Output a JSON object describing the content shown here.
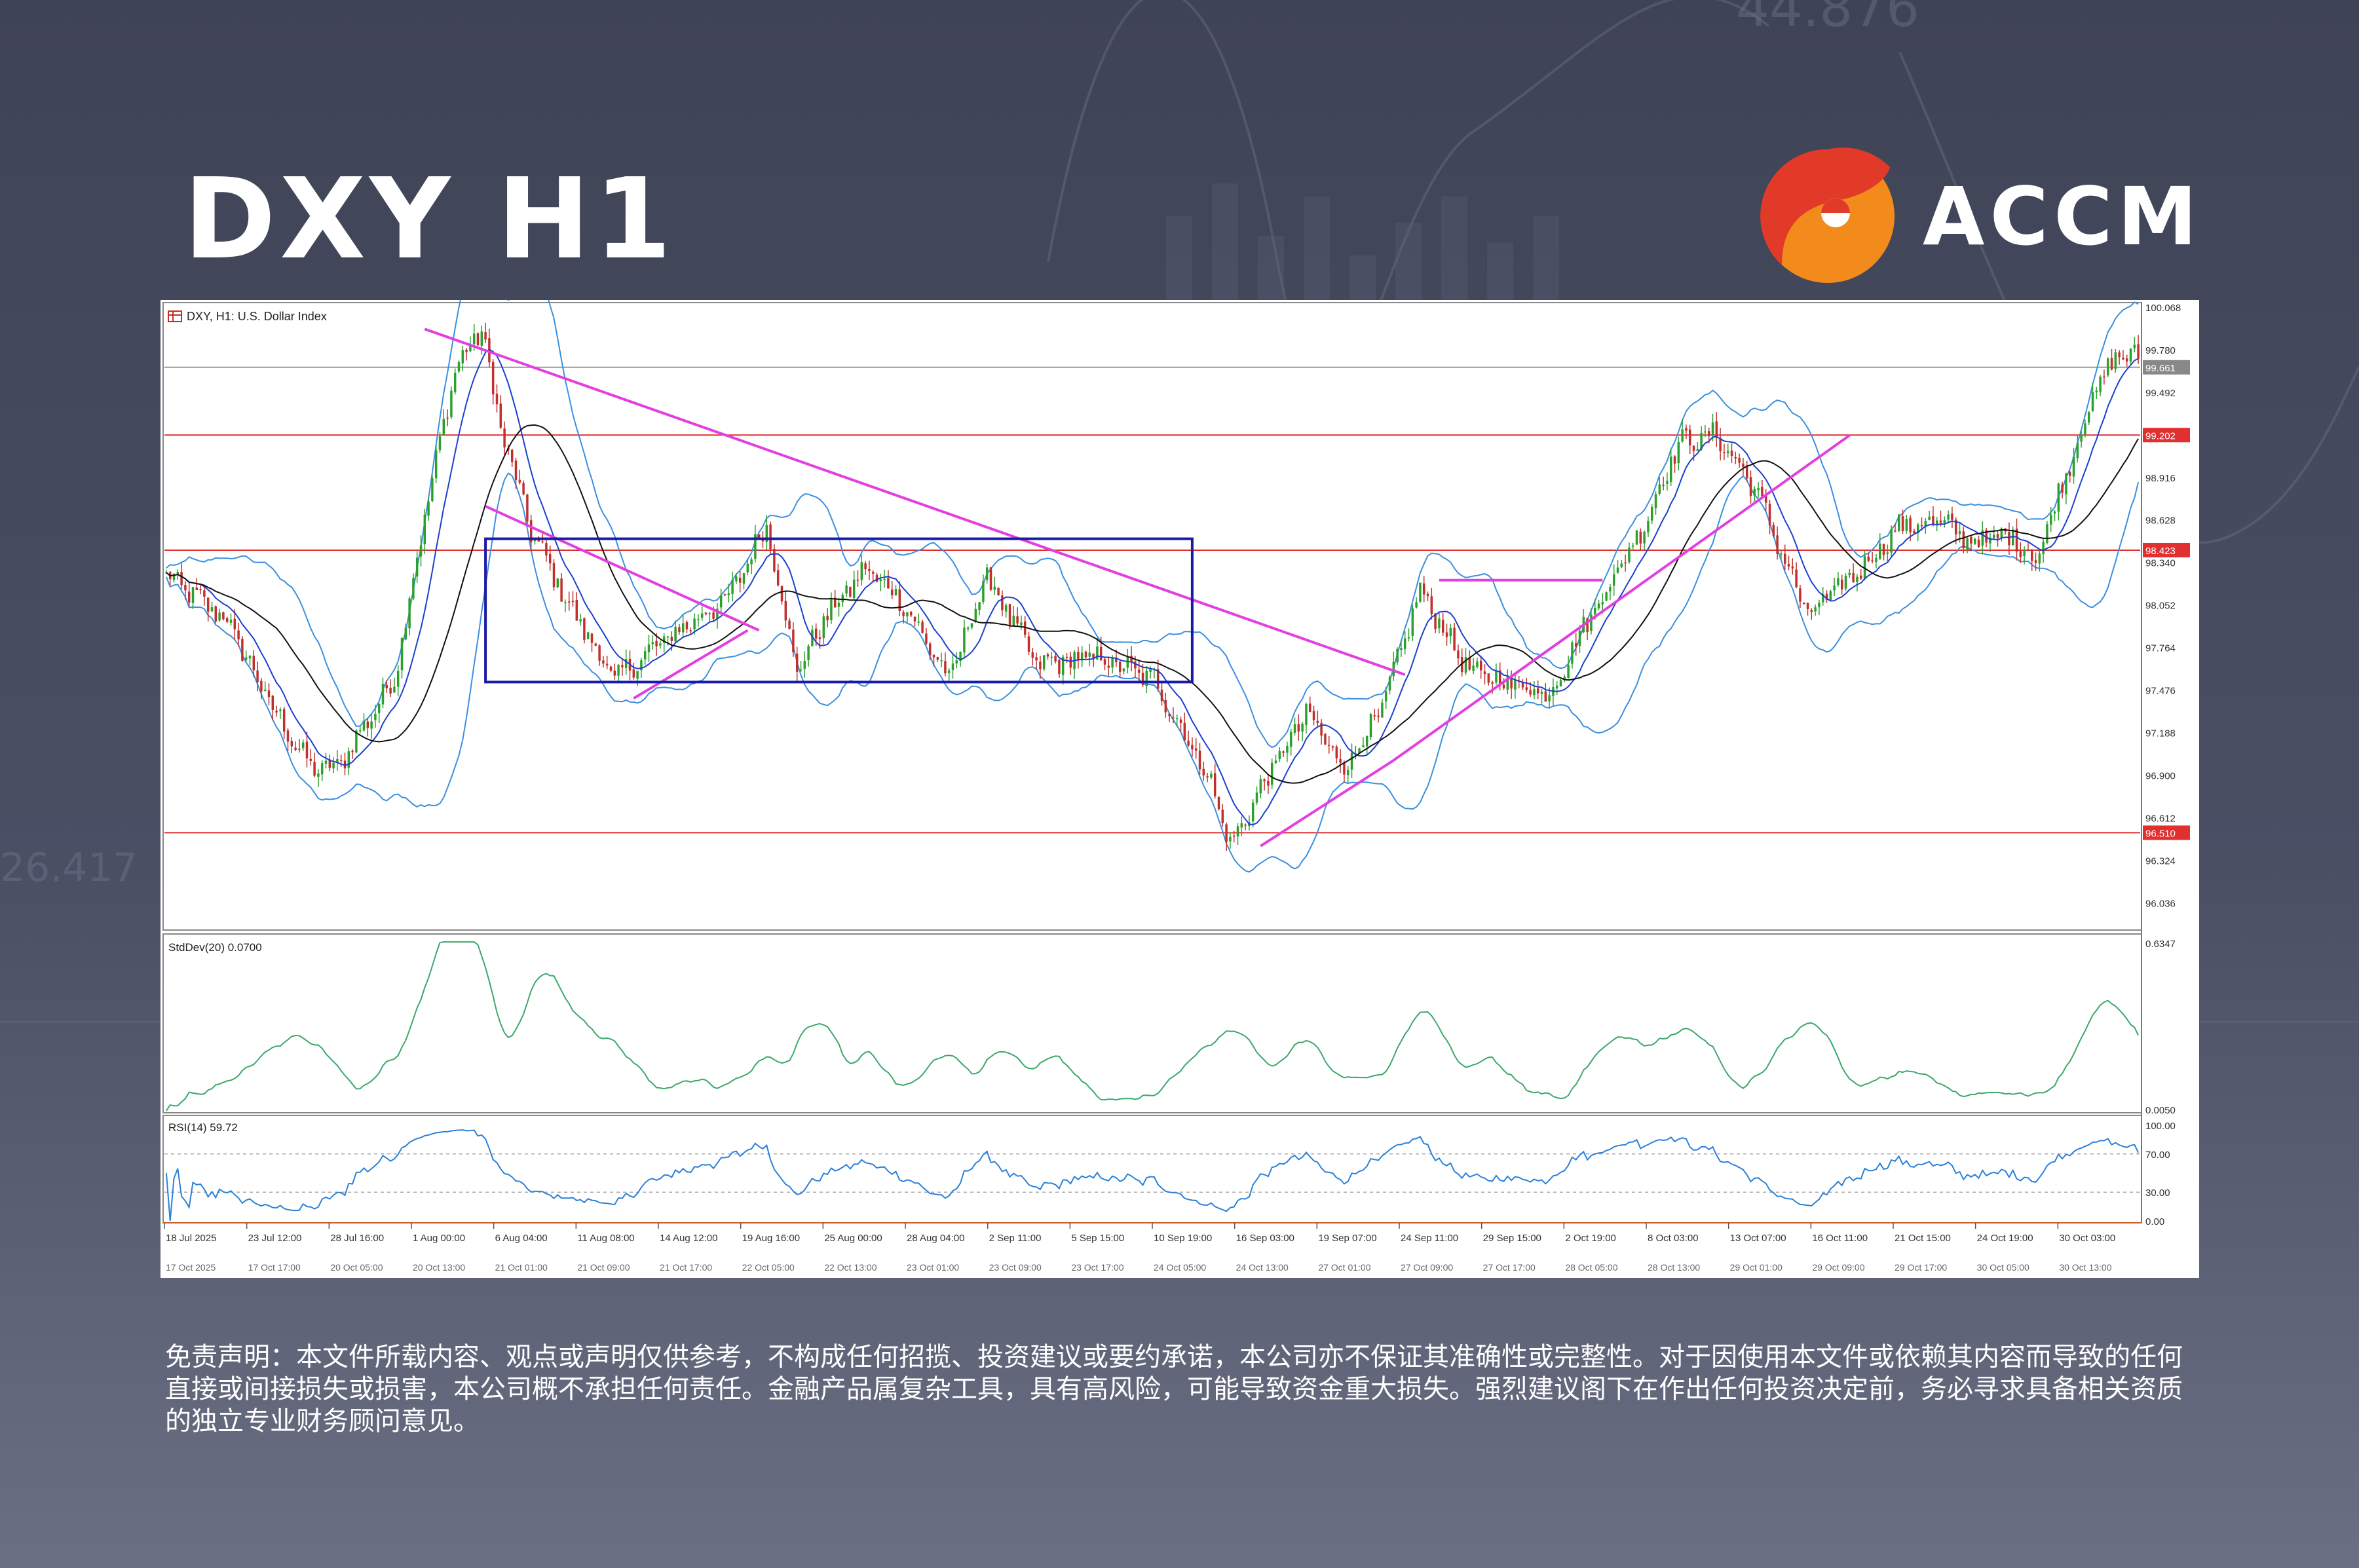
{
  "header": {
    "title": "DXY H1",
    "brand": "ACCM"
  },
  "background_numbers": [
    "44.876",
    "26.417"
  ],
  "colors": {
    "accent_magenta": "#e23fe0",
    "support_red": "#e03030",
    "box_blue": "#1a1aa8",
    "bb_blue": "#3a8fe0",
    "stddev_green": "#3aa86a",
    "rsi_blue": "#2a80d8",
    "bull_candle": "#2ca02c",
    "bear_candle": "#c0302c"
  },
  "chart_data": [
    {
      "type": "candlestick",
      "title": "DXY, H1:  U.S. Dollar Index",
      "ylim": [
        95.86,
        100.09
      ],
      "y_ticks": [
        100.068,
        99.78,
        99.492,
        98.916,
        98.628,
        98.34,
        98.052,
        97.764,
        97.476,
        97.188,
        96.9,
        96.612,
        96.324,
        96.036
      ],
      "marked_levels": [
        {
          "value": 99.661,
          "label": "99.661",
          "color": "gray"
        },
        {
          "value": 99.202,
          "label": "99.202",
          "color": "red"
        },
        {
          "value": 98.423,
          "label": "98.423",
          "color": "red"
        },
        {
          "value": 96.51,
          "label": "96.510",
          "color": "red"
        }
      ],
      "x_labels_top": [
        "18 Jul 2025",
        "23 Jul 12:00",
        "28 Jul 16:00",
        "1 Aug 00:00",
        "6 Aug 04:00",
        "11 Aug 08:00",
        "14 Aug 12:00",
        "19 Aug 16:00",
        "25 Aug 00:00",
        "28 Aug 04:00",
        "2 Sep 11:00",
        "5 Sep 15:00",
        "10 Sep 19:00",
        "16 Sep 03:00",
        "19 Sep 07:00",
        "24 Sep 11:00",
        "29 Sep 15:00",
        "2 Oct 19:00",
        "8 Oct 03:00",
        "13 Oct 07:00",
        "16 Oct 11:00",
        "21 Oct 15:00",
        "24 Oct 19:00",
        "30 Oct 03:00"
      ],
      "x_labels_bottom": [
        "17 Oct 2025",
        "17 Oct 17:00",
        "20 Oct 05:00",
        "20 Oct 13:00",
        "21 Oct 01:00",
        "21 Oct 09:00",
        "21 Oct 17:00",
        "22 Oct 05:00",
        "22 Oct 13:00",
        "23 Oct 01:00",
        "23 Oct 09:00",
        "23 Oct 17:00",
        "24 Oct 05:00",
        "24 Oct 13:00",
        "27 Oct 01:00",
        "27 Oct 09:00",
        "27 Oct 17:00",
        "28 Oct 05:00",
        "28 Oct 13:00",
        "29 Oct 01:00",
        "29 Oct 09:00",
        "29 Oct 17:00",
        "30 Oct 05:00",
        "30 Oct 13:00"
      ],
      "price_path": [
        [
          0,
          98.25
        ],
        [
          16,
          97.95
        ],
        [
          28,
          97.35
        ],
        [
          38,
          96.95
        ],
        [
          45,
          96.95
        ],
        [
          60,
          97.55
        ],
        [
          68,
          98.65
        ],
        [
          76,
          99.65
        ],
        [
          83,
          99.92
        ],
        [
          88,
          99.25
        ],
        [
          96,
          98.55
        ],
        [
          106,
          98.05
        ],
        [
          118,
          97.55
        ],
        [
          133,
          97.85
        ],
        [
          148,
          98.1
        ],
        [
          158,
          98.6
        ],
        [
          166,
          97.6
        ],
        [
          173,
          97.95
        ],
        [
          184,
          98.3
        ],
        [
          193,
          98.1
        ],
        [
          206,
          97.55
        ],
        [
          216,
          98.25
        ],
        [
          229,
          97.65
        ],
        [
          245,
          97.7
        ],
        [
          260,
          97.55
        ],
        [
          275,
          96.85
        ],
        [
          280,
          96.42
        ],
        [
          290,
          96.9
        ],
        [
          300,
          97.32
        ],
        [
          310,
          96.95
        ],
        [
          320,
          97.35
        ],
        [
          330,
          98.15
        ],
        [
          343,
          97.6
        ],
        [
          355,
          97.52
        ],
        [
          364,
          97.45
        ],
        [
          373,
          97.9
        ],
        [
          388,
          98.55
        ],
        [
          398,
          99.15
        ],
        [
          408,
          99.2
        ],
        [
          418,
          98.85
        ],
        [
          432,
          97.98
        ],
        [
          446,
          98.3
        ],
        [
          456,
          98.58
        ],
        [
          466,
          98.62
        ],
        [
          476,
          98.48
        ],
        [
          486,
          98.52
        ],
        [
          492,
          98.35
        ],
        [
          500,
          98.95
        ],
        [
          508,
          99.52
        ],
        [
          514,
          99.76
        ],
        [
          519,
          99.72
        ]
      ],
      "trendlines": [
        {
          "from": [
            68,
            99.92
          ],
          "to": [
            326,
            97.58
          ]
        },
        {
          "from": [
            84,
            98.72
          ],
          "to": [
            156,
            97.88
          ]
        },
        {
          "from": [
            123,
            97.42
          ],
          "to": [
            153,
            97.88
          ]
        },
        {
          "from": [
            288,
            96.42
          ],
          "to": [
            323,
            97.0
          ]
        },
        {
          "from": [
            323,
            97.0
          ],
          "to": [
            443,
            99.2
          ]
        },
        {
          "from": [
            335,
            98.22
          ],
          "to": [
            378,
            98.22
          ]
        }
      ],
      "range_box": {
        "x": [
          84,
          270
        ],
        "y": [
          97.53,
          98.5
        ]
      }
    },
    {
      "type": "line",
      "title": "StdDev(20) 0.0700",
      "y_ticks": [
        0.6347,
        0.005
      ],
      "ylim": [
        0.0,
        0.66
      ]
    },
    {
      "type": "line",
      "title": "RSI(14) 59.72",
      "y_ticks": [
        100.0,
        70.0,
        30.0,
        0.0
      ],
      "ylim": [
        0,
        100
      ]
    }
  ],
  "disclaimer": "免责声明：本文件所载内容、观点或声明仅供参考，不构成任何招揽、投资建议或要约承诺，本公司亦不保证其准确性或完整性。对于因使用本文件或依赖其内容而导致的任何直接或间接损失或损害，本公司概不承担任何责任。金融产品属复杂工具，具有高风险，可能导致资金重大损失。强烈建议阁下在作出任何投资决定前，务必寻求具备相关资质的独立专业财务顾问意见。"
}
